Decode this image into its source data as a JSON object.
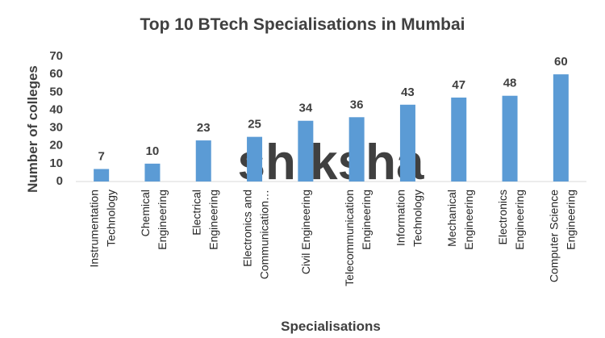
{
  "chart_data": {
    "type": "bar",
    "title": "Top 10 BTech Specialisations in Mumbai",
    "x_label": "Specialisations",
    "y_label": "Number of colleges",
    "watermark": "shiksha",
    "categories": [
      "Instrumentation Technology",
      "Chemical Engineering",
      "Electrical Engineering",
      "Electronics and Communication…",
      "Civil Engineering",
      "Telecommunication Engineering",
      "Information Technology",
      "Mechanical Engineering",
      "Electronics Engineering",
      "Computer Science Engineering"
    ],
    "values": [
      7,
      10,
      23,
      25,
      34,
      36,
      43,
      47,
      48,
      60
    ],
    "color": "#5b9bd5",
    "ylim": [
      0,
      70
    ],
    "yticks": [
      0,
      10,
      20,
      30,
      40,
      50,
      60,
      70
    ],
    "grid": false
  }
}
